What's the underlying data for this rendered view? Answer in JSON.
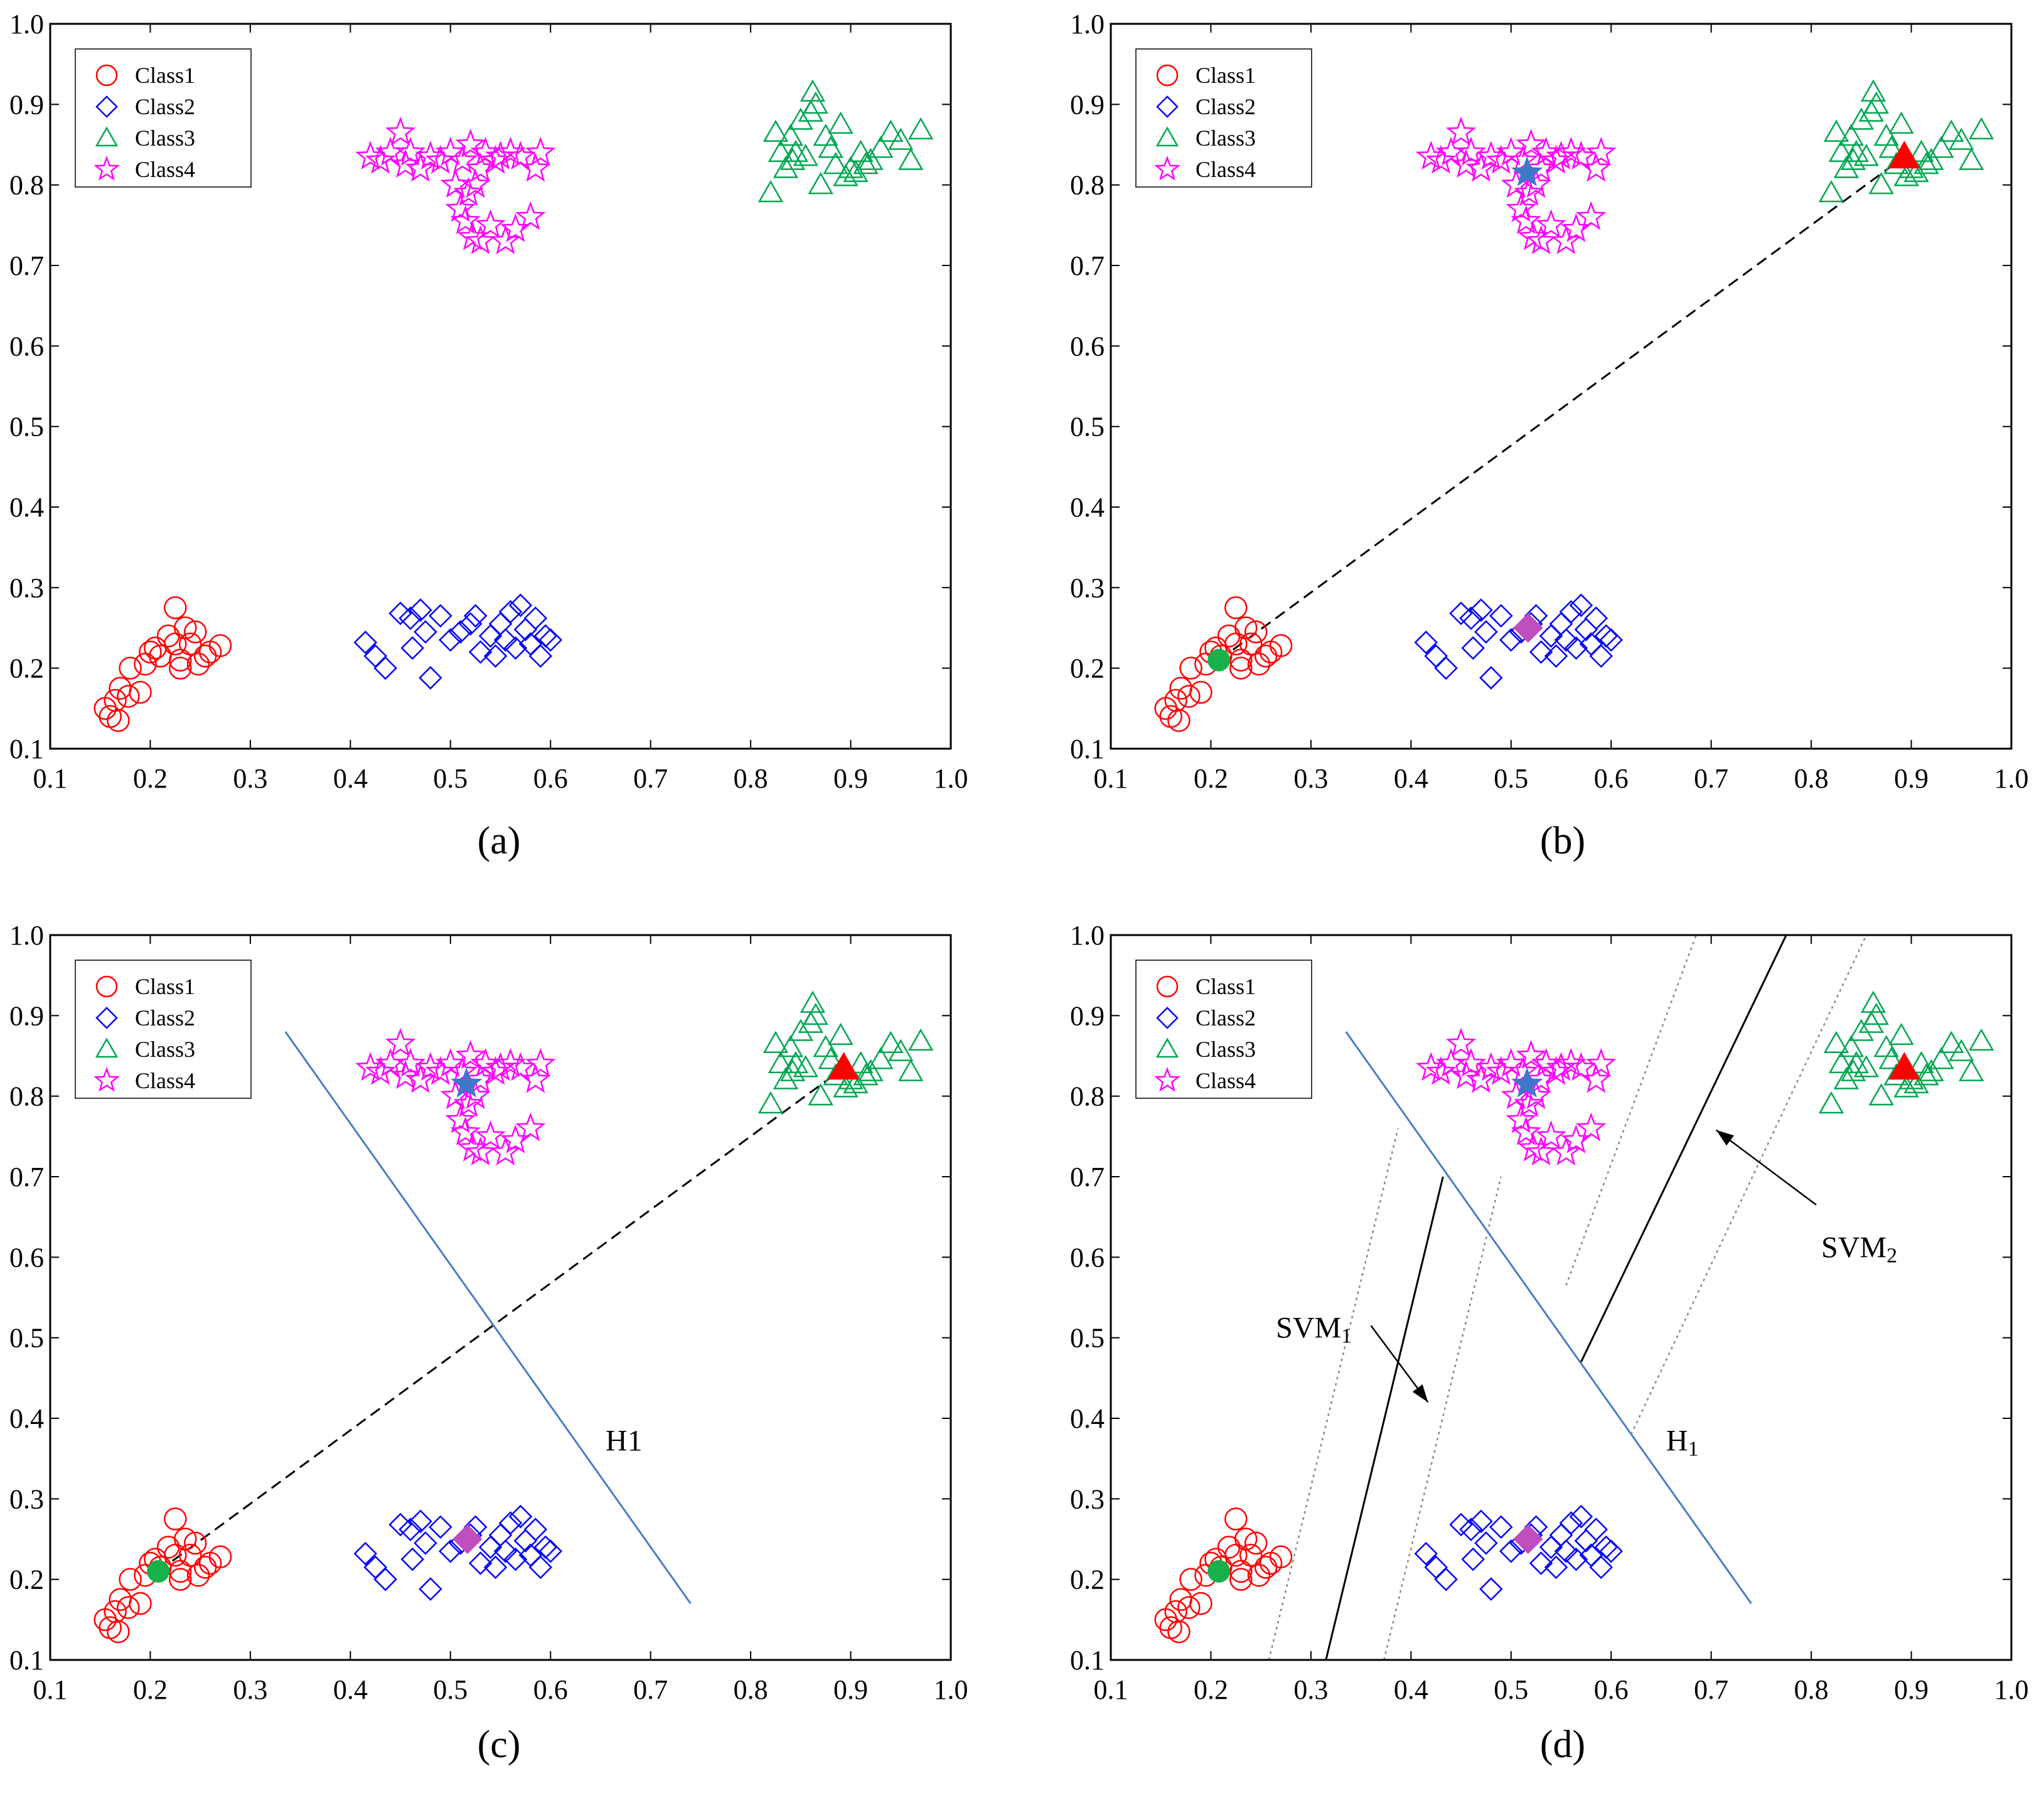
{
  "colors": {
    "class1": "#ff0000",
    "class2": "#0000ff",
    "class3": "#00a651",
    "class4": "#ff00ff",
    "h1_line": "#4a7cc4",
    "center_class1": "#18b04a",
    "center_class2": "#bf4fbf",
    "center_class3": "#ff0000",
    "center_class4": "#3f78c8",
    "axis": "#000000",
    "margin_line": "#888888"
  },
  "chart_data": [
    {
      "id": "a",
      "type": "scatter",
      "caption": "(a)",
      "xlim": [
        0.1,
        1.0
      ],
      "ylim": [
        0.1,
        1.0
      ],
      "xticks": [
        "0.1",
        "0.2",
        "0.3",
        "0.4",
        "0.5",
        "0.6",
        "0.7",
        "0.8",
        "0.9",
        "1.0"
      ],
      "yticks": [
        "0.1",
        "0.2",
        "0.3",
        "0.4",
        "0.5",
        "0.6",
        "0.7",
        "0.8",
        "0.9",
        "1.0"
      ],
      "legend": {
        "position": "top-left",
        "entries": [
          "Class1",
          "Class2",
          "Class3",
          "Class4"
        ]
      },
      "centers": false,
      "lines": [],
      "labels": []
    },
    {
      "id": "b",
      "type": "scatter",
      "caption": "(b)",
      "xlim": [
        0.1,
        1.0
      ],
      "ylim": [
        0.1,
        1.0
      ],
      "xticks": [
        "0.1",
        "0.2",
        "0.3",
        "0.4",
        "0.5",
        "0.6",
        "0.7",
        "0.8",
        "0.9",
        "1.0"
      ],
      "yticks": [
        "0.1",
        "0.2",
        "0.3",
        "0.4",
        "0.5",
        "0.6",
        "0.7",
        "0.8",
        "0.9",
        "1.0"
      ],
      "legend": {
        "position": "top-left",
        "entries": [
          "Class1",
          "Class2",
          "Class3",
          "Class4"
        ]
      },
      "centers": true,
      "lines": [
        {
          "name": "dashed-connector",
          "style": "dashed",
          "color": "#000000",
          "points": [
            [
              0.208,
              0.21
            ],
            [
              0.893,
              0.835
            ]
          ]
        }
      ],
      "labels": []
    },
    {
      "id": "c",
      "type": "scatter",
      "caption": "(c)",
      "xlim": [
        0.1,
        1.0
      ],
      "ylim": [
        0.1,
        1.0
      ],
      "xticks": [
        "0.1",
        "0.2",
        "0.3",
        "0.4",
        "0.5",
        "0.6",
        "0.7",
        "0.8",
        "0.9",
        "1.0"
      ],
      "yticks": [
        "0.1",
        "0.2",
        "0.3",
        "0.4",
        "0.5",
        "0.6",
        "0.7",
        "0.8",
        "0.9",
        "1.0"
      ],
      "legend": {
        "position": "top-left",
        "entries": [
          "Class1",
          "Class2",
          "Class3",
          "Class4"
        ]
      },
      "centers": true,
      "lines": [
        {
          "name": "dashed-connector",
          "style": "dashed",
          "color": "#000000",
          "points": [
            [
              0.208,
              0.21
            ],
            [
              0.893,
              0.835
            ]
          ]
        },
        {
          "name": "h1-line",
          "style": "solid",
          "color": "#4a7cc4",
          "points": [
            [
              0.335,
              0.88
            ],
            [
              0.74,
              0.17
            ]
          ]
        }
      ],
      "labels": [
        {
          "name": "h1-label",
          "text": "H1",
          "at": [
            0.655,
            0.36
          ]
        }
      ]
    },
    {
      "id": "d",
      "type": "scatter",
      "caption": "(d)",
      "xlim": [
        0.1,
        1.0
      ],
      "ylim": [
        0.1,
        1.0
      ],
      "xticks": [
        "0.1",
        "0.2",
        "0.3",
        "0.4",
        "0.5",
        "0.6",
        "0.7",
        "0.8",
        "0.9",
        "1.0"
      ],
      "yticks": [
        "0.1",
        "0.2",
        "0.3",
        "0.4",
        "0.5",
        "0.6",
        "0.7",
        "0.8",
        "0.9",
        "1.0"
      ],
      "legend": {
        "position": "top-left",
        "entries": [
          "Class1",
          "Class2",
          "Class3",
          "Class4"
        ]
      },
      "centers": true,
      "lines": [
        {
          "name": "h1-line",
          "style": "solid",
          "color": "#4a7cc4",
          "points": [
            [
              0.335,
              0.88
            ],
            [
              0.74,
              0.17
            ]
          ]
        },
        {
          "name": "svm1-line",
          "style": "solid",
          "color": "#000000",
          "points": [
            [
              0.315,
              0.1
            ],
            [
              0.432,
              0.7
            ]
          ]
        },
        {
          "name": "svm1-margin-left",
          "style": "dotted",
          "color": "#888888",
          "points": [
            [
              0.258,
              0.1
            ],
            [
              0.387,
              0.76
            ]
          ]
        },
        {
          "name": "svm1-margin-right",
          "style": "dotted",
          "color": "#888888",
          "points": [
            [
              0.373,
              0.1
            ],
            [
              0.49,
              0.7
            ]
          ]
        },
        {
          "name": "svm2-line",
          "style": "solid",
          "color": "#000000",
          "points": [
            [
              0.57,
              0.47
            ],
            [
              0.775,
              1.0
            ]
          ]
        },
        {
          "name": "svm2-margin-left",
          "style": "dotted",
          "color": "#888888",
          "points": [
            [
              0.555,
              0.565
            ],
            [
              0.685,
              1.0
            ]
          ]
        },
        {
          "name": "svm2-margin-right",
          "style": "dotted",
          "color": "#888888",
          "points": [
            [
              0.62,
              0.38
            ],
            [
              0.855,
              1.0
            ]
          ]
        }
      ],
      "arrows": [
        {
          "name": "svm1-arrow",
          "from": [
            0.36,
            0.515
          ],
          "to": [
            0.417,
            0.42
          ]
        },
        {
          "name": "svm2-arrow",
          "from": [
            0.805,
            0.665
          ],
          "to": [
            0.705,
            0.758
          ]
        }
      ],
      "labels": [
        {
          "name": "svm1-label",
          "text": "SVM",
          "sub": "1",
          "at": [
            0.265,
            0.5
          ]
        },
        {
          "name": "svm2-label",
          "text": "SVM",
          "sub": "2",
          "at": [
            0.81,
            0.6
          ]
        },
        {
          "name": "h1-label",
          "text": "H",
          "sub": "1",
          "at": [
            0.655,
            0.36
          ]
        }
      ]
    }
  ],
  "scatter_points": {
    "class1": [
      [
        0.155,
        0.15
      ],
      [
        0.16,
        0.14
      ],
      [
        0.168,
        0.135
      ],
      [
        0.165,
        0.16
      ],
      [
        0.17,
        0.175
      ],
      [
        0.178,
        0.165
      ],
      [
        0.19,
        0.17
      ],
      [
        0.18,
        0.2
      ],
      [
        0.195,
        0.205
      ],
      [
        0.2,
        0.22
      ],
      [
        0.205,
        0.225
      ],
      [
        0.21,
        0.215
      ],
      [
        0.218,
        0.24
      ],
      [
        0.225,
        0.275
      ],
      [
        0.225,
        0.23
      ],
      [
        0.23,
        0.21
      ],
      [
        0.235,
        0.25
      ],
      [
        0.24,
        0.23
      ],
      [
        0.245,
        0.245
      ],
      [
        0.248,
        0.205
      ],
      [
        0.255,
        0.215
      ],
      [
        0.26,
        0.22
      ],
      [
        0.27,
        0.228
      ],
      [
        0.23,
        0.2
      ]
    ],
    "class2": [
      [
        0.415,
        0.232
      ],
      [
        0.425,
        0.215
      ],
      [
        0.435,
        0.2
      ],
      [
        0.45,
        0.268
      ],
      [
        0.46,
        0.262
      ],
      [
        0.462,
        0.225
      ],
      [
        0.47,
        0.272
      ],
      [
        0.475,
        0.245
      ],
      [
        0.48,
        0.188
      ],
      [
        0.49,
        0.265
      ],
      [
        0.5,
        0.235
      ],
      [
        0.51,
        0.245
      ],
      [
        0.52,
        0.255
      ],
      [
        0.525,
        0.265
      ],
      [
        0.53,
        0.22
      ],
      [
        0.54,
        0.24
      ],
      [
        0.545,
        0.215
      ],
      [
        0.55,
        0.255
      ],
      [
        0.56,
        0.27
      ],
      [
        0.565,
        0.225
      ],
      [
        0.57,
        0.278
      ],
      [
        0.575,
        0.248
      ],
      [
        0.58,
        0.23
      ],
      [
        0.585,
        0.262
      ],
      [
        0.59,
        0.215
      ],
      [
        0.595,
        0.24
      ],
      [
        0.6,
        0.235
      ],
      [
        0.555,
        0.235
      ]
    ],
    "class3": [
      [
        0.82,
        0.79
      ],
      [
        0.825,
        0.865
      ],
      [
        0.83,
        0.84
      ],
      [
        0.835,
        0.82
      ],
      [
        0.84,
        0.86
      ],
      [
        0.842,
        0.83
      ],
      [
        0.845,
        0.84
      ],
      [
        0.85,
        0.88
      ],
      [
        0.855,
        0.835
      ],
      [
        0.86,
        0.89
      ],
      [
        0.862,
        0.915
      ],
      [
        0.865,
        0.9
      ],
      [
        0.87,
        0.8
      ],
      [
        0.875,
        0.86
      ],
      [
        0.88,
        0.845
      ],
      [
        0.885,
        0.825
      ],
      [
        0.89,
        0.875
      ],
      [
        0.895,
        0.81
      ],
      [
        0.9,
        0.82
      ],
      [
        0.905,
        0.815
      ],
      [
        0.91,
        0.84
      ],
      [
        0.915,
        0.825
      ],
      [
        0.92,
        0.83
      ],
      [
        0.93,
        0.845
      ],
      [
        0.94,
        0.865
      ],
      [
        0.95,
        0.855
      ],
      [
        0.96,
        0.83
      ],
      [
        0.97,
        0.868
      ]
    ],
    "class4": [
      [
        0.42,
        0.835
      ],
      [
        0.43,
        0.83
      ],
      [
        0.44,
        0.84
      ],
      [
        0.45,
        0.865
      ],
      [
        0.455,
        0.825
      ],
      [
        0.46,
        0.84
      ],
      [
        0.47,
        0.82
      ],
      [
        0.48,
        0.835
      ],
      [
        0.49,
        0.83
      ],
      [
        0.5,
        0.84
      ],
      [
        0.505,
        0.8
      ],
      [
        0.51,
        0.77
      ],
      [
        0.512,
        0.83
      ],
      [
        0.515,
        0.755
      ],
      [
        0.52,
        0.85
      ],
      [
        0.522,
        0.735
      ],
      [
        0.525,
        0.8
      ],
      [
        0.53,
        0.82
      ],
      [
        0.535,
        0.84
      ],
      [
        0.54,
        0.75
      ],
      [
        0.545,
        0.83
      ],
      [
        0.55,
        0.835
      ],
      [
        0.555,
        0.73
      ],
      [
        0.56,
        0.84
      ],
      [
        0.565,
        0.745
      ],
      [
        0.57,
        0.835
      ],
      [
        0.58,
        0.76
      ],
      [
        0.585,
        0.82
      ],
      [
        0.59,
        0.84
      ],
      [
        0.53,
        0.73
      ],
      [
        0.518,
        0.79
      ]
    ]
  },
  "centers": {
    "class1": [
      0.208,
      0.21
    ],
    "class2": [
      0.517,
      0.25
    ],
    "class3": [
      0.893,
      0.835
    ],
    "class4": [
      0.516,
      0.815
    ]
  }
}
